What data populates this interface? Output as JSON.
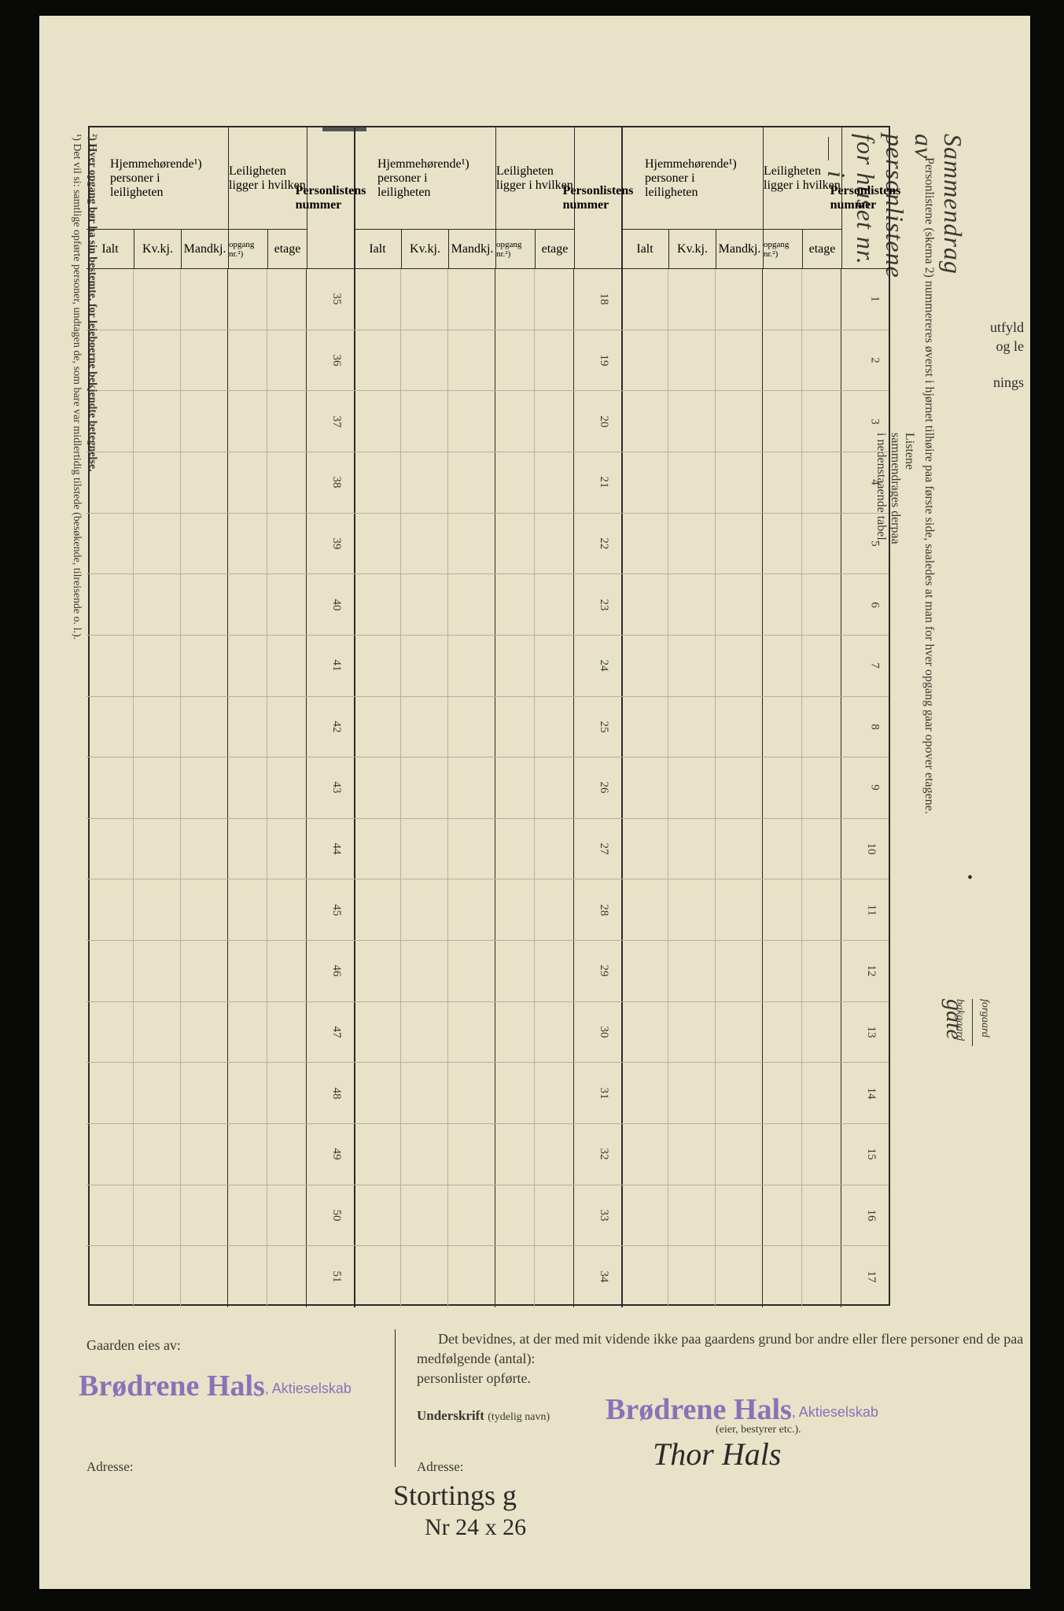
{
  "edge": {
    "utfyld": "utfyld",
    "ogle": "og le",
    "nings": "nings"
  },
  "main_title": "Sammendrag av personlistene for huset nr.",
  "title_i": "i",
  "gate_word": "gate",
  "gaard": {
    "forgaard": "forgaard",
    "bakgaard": "bakgaard"
  },
  "sub_instruction_1": "Personlistene (skema 2) nummereres øverst i hjørnet tilhøire paa første side, saaledes at man for hver opgang gaar opover etagene.",
  "sub_instruction_2": "Listene sammendrages derpaa i nedenstaaende tabel.",
  "table_headers": {
    "personlistens": "Personlistens nummer",
    "leiligheten": "Leiligheten ligger i hvilken",
    "hjemmehorende": "Hjemmehørende¹) personer i leiligheten",
    "etage": "etage",
    "opgang": "opgang nr.²)",
    "mandkj": "Mandkj.",
    "kvkj": "Kv.kj.",
    "ialt": "Ialt"
  },
  "row_numbers_g1": [
    "1",
    "2",
    "3",
    "4",
    "5",
    "6",
    "7",
    "8",
    "9",
    "10",
    "11",
    "12",
    "13",
    "14",
    "15",
    "16",
    "17"
  ],
  "row_numbers_g2": [
    "18",
    "19",
    "20",
    "21",
    "22",
    "23",
    "24",
    "25",
    "26",
    "27",
    "28",
    "29",
    "30",
    "31",
    "32",
    "33",
    "34"
  ],
  "row_numbers_g3": [
    "35",
    "36",
    "37",
    "38",
    "39",
    "40",
    "41",
    "42",
    "43",
    "44",
    "45",
    "46",
    "47",
    "48",
    "49",
    "50",
    "51"
  ],
  "footnotes": {
    "fn1": "¹) Det vil si: samtlige opførte personer, undtagen de, som bare var midlertidig tilstede (besøkende, tilreisende o. l.).",
    "fn2": "²) Hver opgang bør ha sin bestemte, for leieboerne bekjendte betegnelse."
  },
  "bottom": {
    "gaarden_eies": "Gaarden eies av:",
    "stamp_name": "Brødrene Hals",
    "stamp_suffix": ", Aktieselskab",
    "adresse": "Adresse:",
    "bevidnes": "Det bevidnes, at der med mit vidende ikke paa gaardens grund bor andre eller flere personer end de paa medfølgende (antal):",
    "personlister": "personlister opførte.",
    "underskrift": "Underskrift (tydelig navn)",
    "eier_bestyrer": "(eier, bestyrer etc.).",
    "signature": "Thor Hals",
    "handwrite1": "Stortings g",
    "handwrite2": "Nr 24 x 26"
  },
  "colors": {
    "paper": "#e8e2c8",
    "ink": "#2a2a2a",
    "stamp": "#8a72b8",
    "light_line": "#b8b09a"
  }
}
